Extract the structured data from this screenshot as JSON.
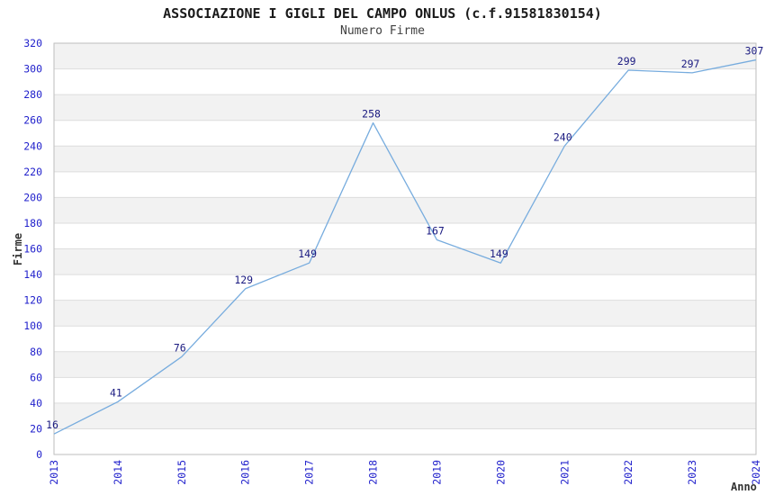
{
  "figure": {
    "title": "ASSOCIAZIONE I GIGLI DEL CAMPO ONLUS (c.f.91581830154)",
    "subtitle": "Numero Firme",
    "ylabel": "Firme",
    "xlabel": "Anno"
  },
  "chart_data": {
    "type": "line",
    "title": "ASSOCIAZIONE I GIGLI DEL CAMPO ONLUS (c.f.91581830154)",
    "subtitle": "Numero Firme",
    "xlabel": "Anno",
    "ylabel": "Firme",
    "categories": [
      "2013",
      "2014",
      "2015",
      "2016",
      "2017",
      "2018",
      "2019",
      "2020",
      "2021",
      "2022",
      "2023",
      "2024"
    ],
    "series": [
      {
        "name": "Numero Firme",
        "values": [
          16,
          41,
          76,
          129,
          149,
          258,
          167,
          149,
          240,
          299,
          297,
          307
        ]
      }
    ],
    "data_labels_visible": true,
    "ylim": [
      0,
      320
    ],
    "ytick_step": 20,
    "grid": true,
    "banded_background": true,
    "legend_position": "none",
    "colors": {
      "line": "#77ACDE",
      "tick_label": "#2222CC",
      "data_label": "#1A1A80",
      "band": "#F2F2F2",
      "gridline": "#DDDDDD",
      "axis_border": "#BEBEBE",
      "title_text": "#1A1A1A",
      "axis_title_text": "#333333"
    }
  }
}
